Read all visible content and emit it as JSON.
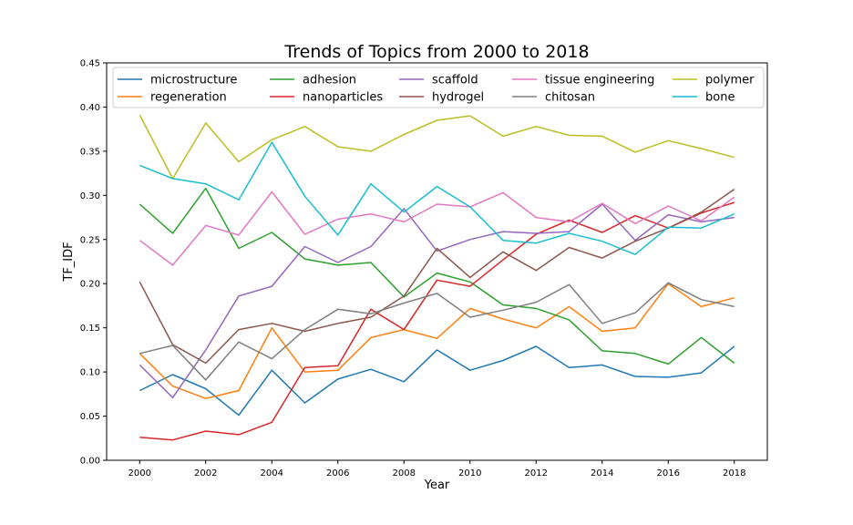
{
  "chart_data": {
    "type": "line",
    "title": "Trends of Topics from 2000 to 2018",
    "xlabel": "Year",
    "ylabel": "TF_IDF",
    "xlim": [
      1999,
      2019
    ],
    "ylim": [
      0,
      0.45
    ],
    "xticks": [
      2000,
      2002,
      2004,
      2006,
      2008,
      2010,
      2012,
      2014,
      2016,
      2018
    ],
    "xtick_labels": [
      "2000",
      "2002",
      "2004",
      "2006",
      "2008",
      "2010",
      "2012",
      "2014",
      "2016",
      "2018"
    ],
    "yticks": [
      0,
      0.05,
      0.1,
      0.15,
      0.2,
      0.25,
      0.3,
      0.35,
      0.4,
      0.45
    ],
    "ytick_labels": [
      "0.00",
      "0.05",
      "0.10",
      "0.15",
      "0.20",
      "0.25",
      "0.30",
      "0.35",
      "0.40",
      "0.45"
    ],
    "grid": false,
    "legend_position": "top",
    "x": [
      2000,
      2001,
      2002,
      2003,
      2004,
      2005,
      2006,
      2007,
      2008,
      2009,
      2010,
      2011,
      2012,
      2013,
      2014,
      2015,
      2016,
      2017,
      2018
    ],
    "series": [
      {
        "name": "microstructure",
        "color": "#1f77b4",
        "values": [
          0.079,
          0.097,
          0.081,
          0.051,
          0.102,
          0.065,
          0.092,
          0.103,
          0.089,
          0.125,
          0.102,
          0.113,
          0.129,
          0.105,
          0.108,
          0.095,
          0.094,
          0.099,
          0.129
        ]
      },
      {
        "name": "regeneration",
        "color": "#ff7f0e",
        "values": [
          0.121,
          0.084,
          0.07,
          0.079,
          0.15,
          0.1,
          0.102,
          0.139,
          0.148,
          0.138,
          0.172,
          0.16,
          0.15,
          0.174,
          0.146,
          0.15,
          0.2,
          0.174,
          0.184
        ]
      },
      {
        "name": "adhesion",
        "color": "#2ca02c",
        "values": [
          0.29,
          0.257,
          0.308,
          0.24,
          0.258,
          0.228,
          0.221,
          0.224,
          0.185,
          0.212,
          0.202,
          0.176,
          0.172,
          0.159,
          0.124,
          0.121,
          0.109,
          0.139,
          0.11
        ]
      },
      {
        "name": "nanoparticles",
        "color": "#d62728",
        "values": [
          0.026,
          0.023,
          0.033,
          0.029,
          0.043,
          0.105,
          0.107,
          0.171,
          0.148,
          0.204,
          0.197,
          0.227,
          0.256,
          0.272,
          0.258,
          0.277,
          0.263,
          0.28,
          0.292
        ]
      },
      {
        "name": "scaffold",
        "color": "#9467bd",
        "values": [
          0.108,
          0.071,
          0.125,
          0.186,
          0.197,
          0.242,
          0.224,
          0.242,
          0.285,
          0.237,
          0.25,
          0.259,
          0.257,
          0.259,
          0.29,
          0.249,
          0.278,
          0.27,
          0.275
        ]
      },
      {
        "name": "hydrogel",
        "color": "#8c564b",
        "values": [
          0.202,
          0.131,
          0.11,
          0.148,
          0.155,
          0.146,
          0.155,
          0.162,
          0.186,
          0.24,
          0.207,
          0.236,
          0.215,
          0.241,
          0.229,
          0.248,
          0.263,
          0.281,
          0.307
        ]
      },
      {
        "name": "tissue engineering",
        "color": "#e377c2",
        "values": [
          0.249,
          0.221,
          0.266,
          0.255,
          0.304,
          0.256,
          0.273,
          0.279,
          0.27,
          0.29,
          0.287,
          0.303,
          0.275,
          0.27,
          0.291,
          0.268,
          0.288,
          0.271,
          0.298
        ]
      },
      {
        "name": "chitosan",
        "color": "#7f7f7f",
        "values": [
          0.121,
          0.13,
          0.091,
          0.134,
          0.115,
          0.148,
          0.171,
          0.166,
          0.178,
          0.189,
          0.162,
          0.17,
          0.179,
          0.199,
          0.155,
          0.167,
          0.201,
          0.182,
          0.174
        ]
      },
      {
        "name": "polymer",
        "color": "#bcbd22",
        "values": [
          0.391,
          0.319,
          0.382,
          0.338,
          0.363,
          0.378,
          0.355,
          0.35,
          0.369,
          0.385,
          0.39,
          0.367,
          0.378,
          0.368,
          0.367,
          0.349,
          0.362,
          0.353,
          0.343
        ]
      },
      {
        "name": "bone",
        "color": "#17becf",
        "values": [
          0.334,
          0.319,
          0.313,
          0.295,
          0.36,
          0.299,
          0.255,
          0.313,
          0.281,
          0.31,
          0.287,
          0.249,
          0.246,
          0.257,
          0.248,
          0.233,
          0.264,
          0.263,
          0.279
        ]
      }
    ]
  }
}
